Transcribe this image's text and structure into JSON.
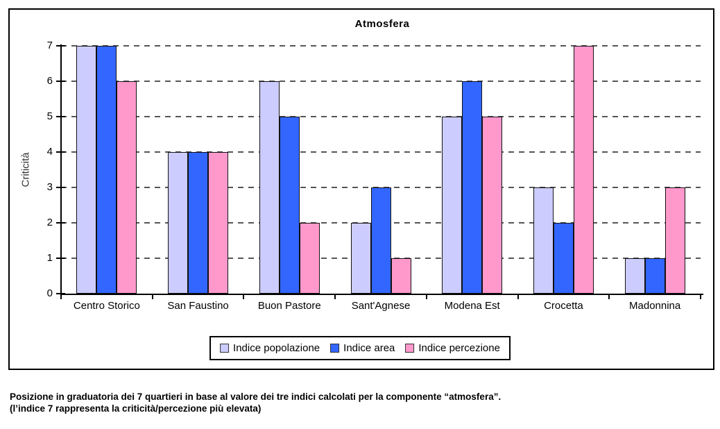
{
  "chart": {
    "title": "Atmosfera",
    "y_axis_label": "Criticità",
    "frame_border_color": "#000000",
    "gridline_color": "#555555",
    "axis_color": "#000000"
  },
  "chart_data": {
    "type": "bar",
    "title": "Atmosfera",
    "xlabel": "",
    "ylabel": "Criticità",
    "categories": [
      "Centro Storico",
      "San Faustino",
      "Buon Pastore",
      "Sant'Agnese",
      "Modena Est",
      "Crocetta",
      "Madonnina"
    ],
    "series": [
      {
        "name": "Indice popolazione",
        "color": "#ccccff",
        "values": [
          7,
          4,
          6,
          2,
          5,
          3,
          1
        ]
      },
      {
        "name": "Indice area",
        "color": "#3366ff",
        "values": [
          7,
          4,
          5,
          3,
          6,
          2,
          1
        ]
      },
      {
        "name": "Indice percezione",
        "color": "#ff99cc",
        "values": [
          6,
          4,
          2,
          1,
          5,
          7,
          3
        ]
      }
    ],
    "ylim": [
      0,
      7
    ],
    "yticks": [
      0,
      1,
      2,
      3,
      4,
      5,
      6,
      7
    ],
    "grid": "horizontal-dashed",
    "legend_position": "bottom"
  },
  "caption": {
    "line1": "Posizione in graduatoria dei 7 quartieri in base al valore dei tre indici calcolati per la componente “atmosfera”.",
    "line2": "(l’indice 7 rappresenta la criticità/percezione più elevata)"
  }
}
